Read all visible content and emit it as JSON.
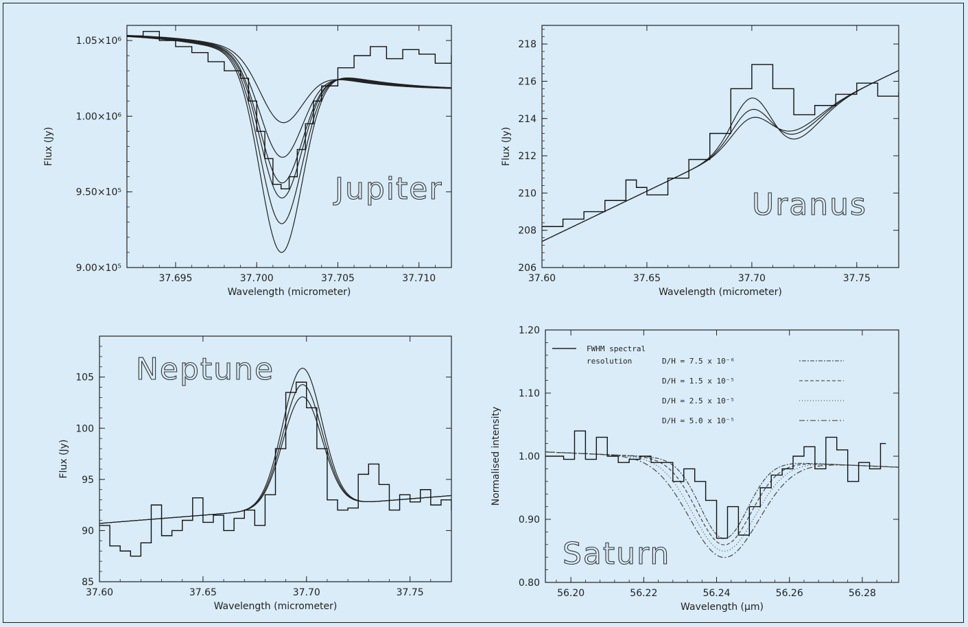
{
  "chart_data": [
    {
      "id": "jupiter",
      "type": "line",
      "planet": "Jupiter",
      "xlabel": "Wavelength (micrometer)",
      "ylabel": "Flux (Jy)",
      "xlim": [
        37.692,
        37.712
      ],
      "ylim": [
        900000,
        1060000
      ],
      "xticks": [
        37.695,
        37.7,
        37.705,
        37.71
      ],
      "xtick_labels": [
        "37.695",
        "37.700",
        "37.705",
        "37.710"
      ],
      "yticks": [
        900000,
        950000,
        1000000,
        1050000
      ],
      "ytick_labels": [
        "9.00×10⁵",
        "9.50×10⁵",
        "1.00×10⁶",
        "1.05×10⁶"
      ],
      "models": {
        "center": 37.7015,
        "sigma": 0.0013,
        "curves": [
          {
            "base": 1036000,
            "depth": 40000,
            "slope": -50000
          },
          {
            "base": 1036000,
            "depth": 63000,
            "slope": -60000
          },
          {
            "base": 1036000,
            "depth": 80000,
            "slope": -70000
          },
          {
            "base": 1036000,
            "depth": 90000,
            "slope": -80000
          },
          {
            "base": 1036000,
            "depth": 107000,
            "slope": -90000
          },
          {
            "base": 1036000,
            "depth": 126000,
            "slope": -100000
          }
        ]
      },
      "observed": {
        "x": [
          37.692,
          37.693,
          37.694,
          37.695,
          37.696,
          37.697,
          37.698,
          37.699,
          37.6995,
          37.7,
          37.7005,
          37.701,
          37.7015,
          37.702,
          37.7025,
          37.703,
          37.7035,
          37.704,
          37.705,
          37.706,
          37.707,
          37.708,
          37.709,
          37.71,
          37.711,
          37.712
        ],
        "y": [
          1053000,
          1056000,
          1050000,
          1046000,
          1042000,
          1036000,
          1030000,
          1025000,
          1010000,
          990000,
          972000,
          955000,
          952000,
          960000,
          978000,
          995000,
          1010000,
          1020000,
          1032000,
          1040000,
          1046000,
          1038000,
          1044000,
          1041000,
          1035000,
          1040000
        ]
      }
    },
    {
      "id": "uranus",
      "type": "line",
      "planet": "Uranus",
      "xlabel": "Wavelength (micrometer)",
      "ylabel": "Flux (Jy)",
      "xlim": [
        37.6,
        37.77
      ],
      "ylim": [
        206,
        219
      ],
      "xticks": [
        37.6,
        37.65,
        37.7,
        37.75
      ],
      "xtick_labels": [
        "37.60",
        "37.65",
        "37.70",
        "37.75"
      ],
      "yticks": [
        206,
        208,
        210,
        212,
        214,
        216,
        218
      ],
      "ytick_labels": [
        "206",
        "208",
        "210",
        "212",
        "214",
        "216",
        "218"
      ],
      "models": {
        "center": 37.7,
        "curves": [
          {
            "amp": 2.6
          },
          {
            "amp": 1.9
          },
          {
            "amp": 1.4
          }
        ]
      },
      "observed": {
        "x": [
          37.6,
          37.61,
          37.62,
          37.63,
          37.64,
          37.645,
          37.65,
          37.66,
          37.67,
          37.68,
          37.69,
          37.7,
          37.71,
          37.72,
          37.73,
          37.74,
          37.75,
          37.76,
          37.77
        ],
        "y": [
          208.2,
          208.6,
          209.0,
          209.6,
          210.7,
          210.3,
          209.9,
          210.8,
          211.8,
          213.2,
          215.6,
          216.9,
          215.6,
          214.2,
          214.7,
          215.3,
          215.9,
          215.2,
          215.4
        ]
      }
    },
    {
      "id": "neptune",
      "type": "line",
      "planet": "Neptune",
      "xlabel": "Wavelength (micrometer)",
      "ylabel": "Flux (Jy)",
      "xlim": [
        37.6,
        37.77
      ],
      "ylim": [
        85,
        109
      ],
      "xticks": [
        37.6,
        37.65,
        37.7,
        37.75
      ],
      "xtick_labels": [
        "37.60",
        "37.65",
        "37.70",
        "37.75"
      ],
      "yticks": [
        85,
        90,
        95,
        100,
        105
      ],
      "ytick_labels": [
        "85",
        "90",
        "95",
        "100",
        "105"
      ],
      "models": {
        "center": 37.698,
        "sigma": 0.0095,
        "curves": [
          {
            "amp": 13.6
          },
          {
            "amp": 12.0
          },
          {
            "amp": 10.8
          }
        ]
      },
      "observed": {
        "x": [
          37.6,
          37.605,
          37.61,
          37.615,
          37.62,
          37.625,
          37.63,
          37.635,
          37.64,
          37.645,
          37.65,
          37.655,
          37.66,
          37.665,
          37.67,
          37.675,
          37.68,
          37.685,
          37.69,
          37.695,
          37.7,
          37.705,
          37.71,
          37.715,
          37.72,
          37.725,
          37.73,
          37.735,
          37.74,
          37.745,
          37.75,
          37.755,
          37.76,
          37.765,
          37.77
        ],
        "y": [
          90.5,
          88.5,
          88.0,
          87.5,
          88.8,
          92.5,
          89.5,
          90.0,
          91.0,
          93.2,
          90.8,
          91.5,
          90.0,
          91.2,
          92.0,
          90.5,
          93.5,
          98.0,
          103.5,
          104.5,
          102.0,
          98.0,
          93.0,
          92.0,
          92.2,
          95.5,
          96.5,
          94.5,
          92.0,
          93.5,
          92.8,
          94.0,
          92.5,
          93.0,
          92.0
        ]
      }
    },
    {
      "id": "saturn",
      "type": "line",
      "planet": "Saturn",
      "xlabel": "Wavelength (μm)",
      "ylabel": "Normalised intensity",
      "xlim": [
        56.193,
        56.29
      ],
      "ylim": [
        0.8,
        1.2
      ],
      "xticks": [
        56.2,
        56.22,
        56.24,
        56.26,
        56.28
      ],
      "xtick_labels": [
        "56.20",
        "56.22",
        "56.24",
        "56.26",
        "56.28"
      ],
      "yticks": [
        0.8,
        0.9,
        1.0,
        1.1,
        1.2
      ],
      "ytick_labels": [
        "0.80",
        "0.90",
        "1.00",
        "1.10",
        "1.20"
      ],
      "legend": {
        "resolution_label": [
          "FWHM spectral",
          "resolution"
        ],
        "entries": [
          {
            "label": "D/H = 7.5 x 10⁻⁶",
            "dash": "2,2,6,2"
          },
          {
            "label": "D/H = 1.5 x 10⁻⁵",
            "dash": "5,3"
          },
          {
            "label": "D/H = 2.5 x 10⁻⁵",
            "dash": "1,3"
          },
          {
            "label": "D/H = 5.0 x 10⁻⁵",
            "dash": "8,3,2,3"
          }
        ]
      },
      "models": {
        "center": 56.242,
        "curves": [
          {
            "depth": 0.125,
            "sigma": 0.0065
          },
          {
            "depth": 0.135,
            "sigma": 0.0075
          },
          {
            "depth": 0.145,
            "sigma": 0.0085
          },
          {
            "depth": 0.155,
            "sigma": 0.0095
          }
        ]
      },
      "observed": {
        "x": [
          56.193,
          56.198,
          56.201,
          56.204,
          56.207,
          56.21,
          56.213,
          56.216,
          56.219,
          56.222,
          56.225,
          56.228,
          56.231,
          56.234,
          56.237,
          56.24,
          56.243,
          56.246,
          56.249,
          56.252,
          56.255,
          56.258,
          56.261,
          56.264,
          56.267,
          56.27,
          56.273,
          56.276,
          56.279,
          56.282,
          56.285
        ],
        "y": [
          1.0,
          0.995,
          1.04,
          0.995,
          1.03,
          1.0,
          0.99,
          0.995,
          1.0,
          0.99,
          0.99,
          0.96,
          0.98,
          0.96,
          0.93,
          0.87,
          0.92,
          0.875,
          0.92,
          0.95,
          0.97,
          0.98,
          1.0,
          1.015,
          0.98,
          1.03,
          1.01,
          0.96,
          0.99,
          0.98,
          1.02
        ]
      }
    }
  ]
}
